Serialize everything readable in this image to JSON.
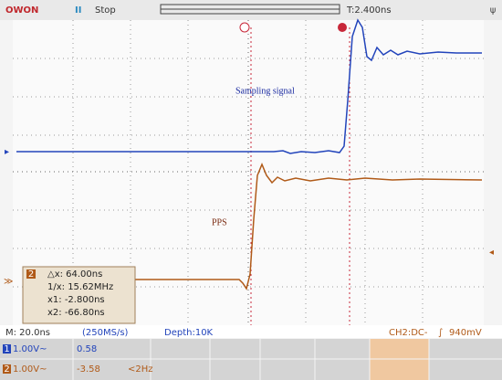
{
  "header": {
    "brand": "OWON",
    "state": "Stop",
    "trigger_time": "T:2.400ns"
  },
  "annotations": {
    "sampling": "Sampling signal",
    "pps": "PPS"
  },
  "measurement": {
    "channel": "2",
    "dx": "△x: 64.00ns",
    "inv": "1/x: 15.62MHz",
    "x1": "x1: -2.800ns",
    "x2": "x2: -66.80ns"
  },
  "status": {
    "timebase": "M: 20.0ns",
    "rate": "(250MS/s)",
    "depth": "Depth:10K",
    "trigger": "CH2:DC-",
    "level": "940mV"
  },
  "channels": [
    {
      "number": "1",
      "scale": "1.00V~",
      "value": "0.58"
    },
    {
      "number": "2",
      "scale": "1.00V~",
      "value": "-3.58",
      "frequency": "<2Hz"
    }
  ]
}
